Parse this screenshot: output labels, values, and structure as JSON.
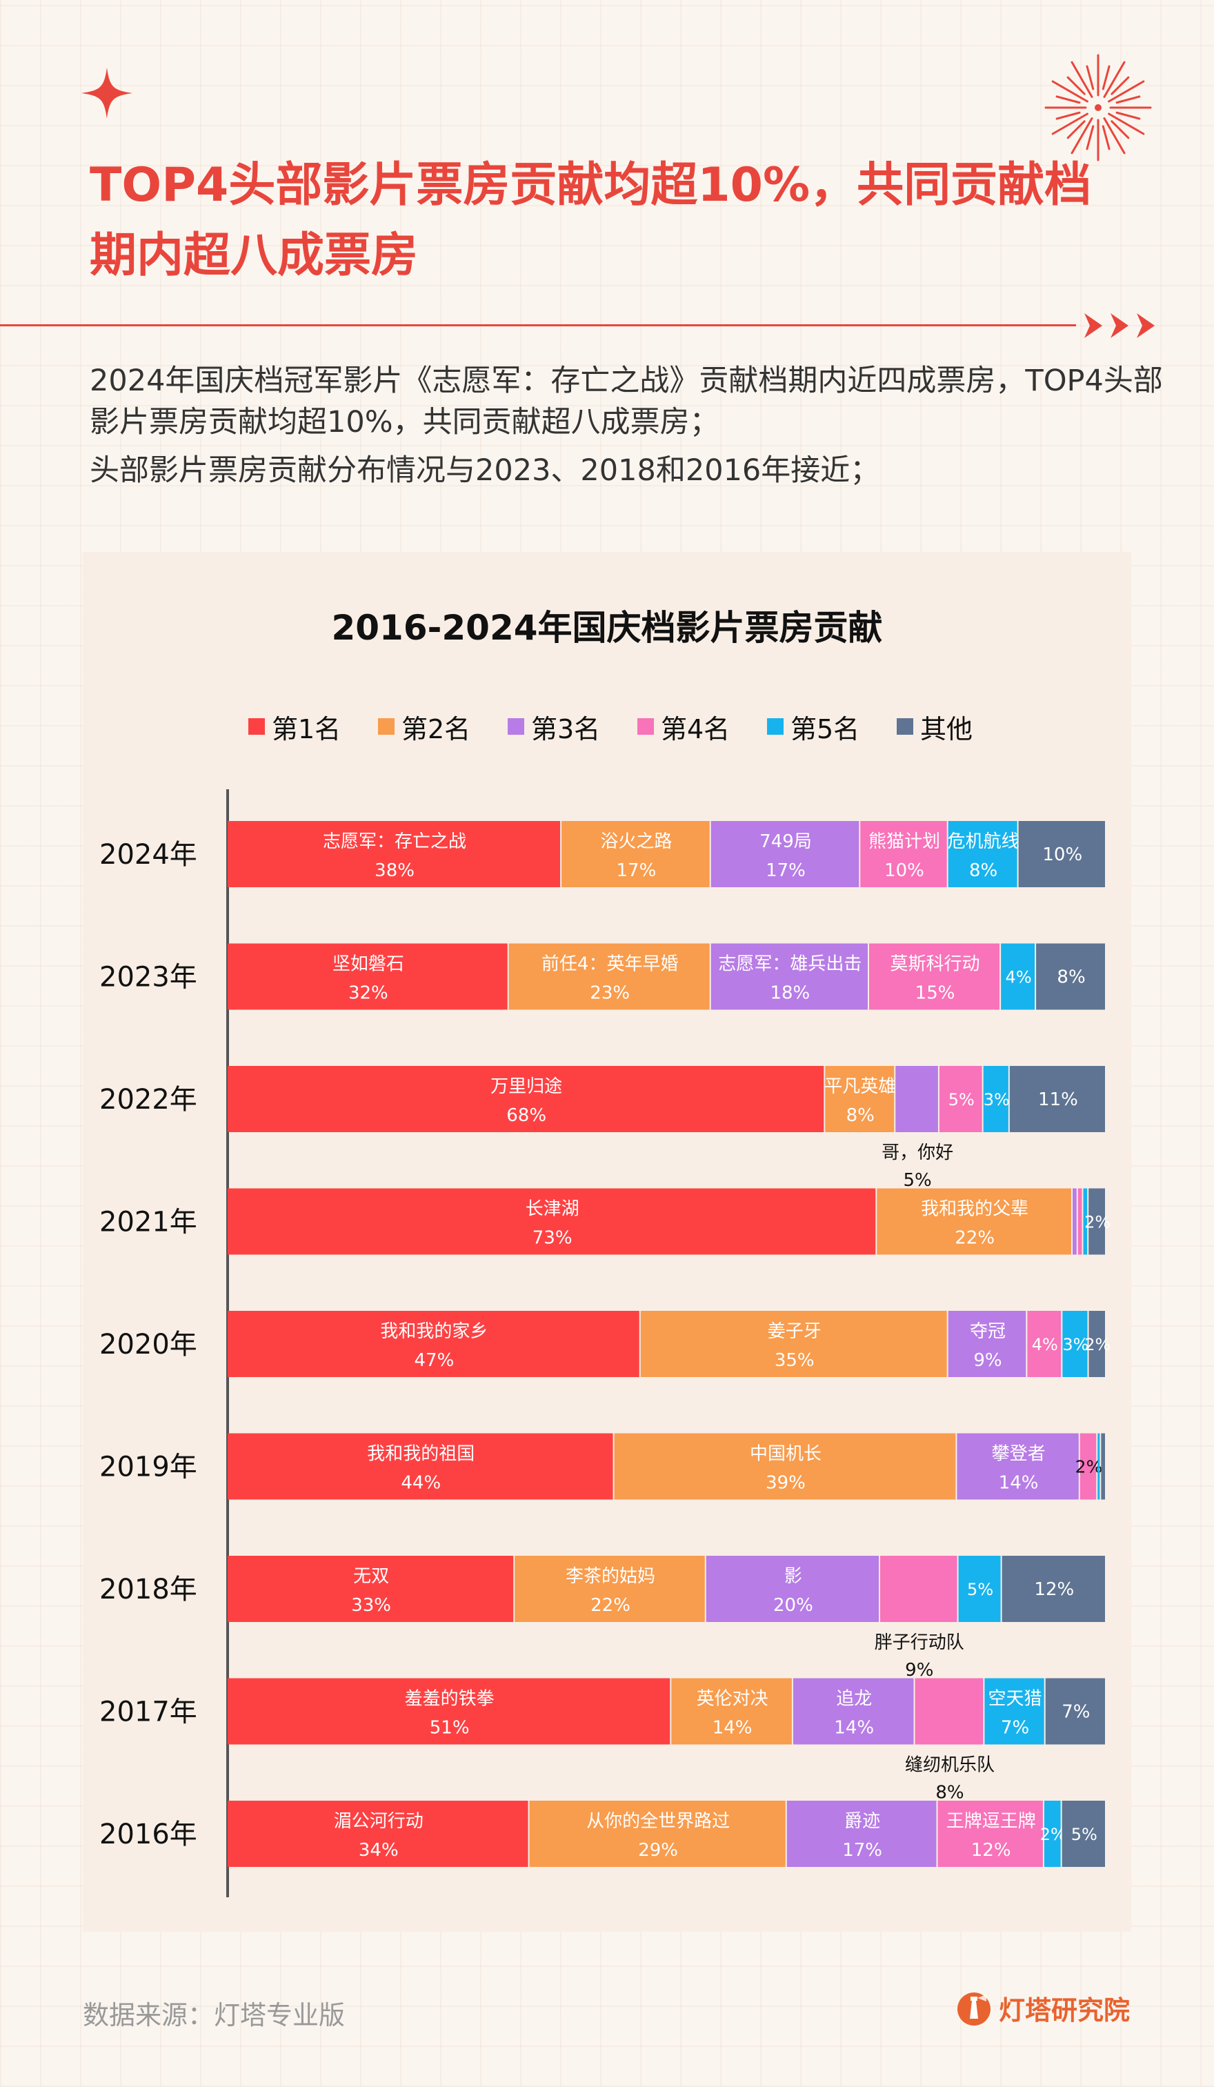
{
  "header": {
    "title": "TOP4头部影片票房贡献均超10%，共同贡献档期内超八成票房",
    "paragraphs": [
      "2024年国庆档冠军影片《志愿军：存亡之战》贡献档期内近四成票房，TOP4头部影片票房贡献均超10%，共同贡献超八成票房；",
      "头部影片票房贡献分布情况与2023、2018和2016年接近；"
    ]
  },
  "footer": {
    "source": "数据来源：灯塔专业版",
    "brand": "灯塔研究院",
    "brand_icon": "lighthouse-logo-icon"
  },
  "colors": {
    "accent": "#e8463c",
    "series": [
      "#fd4143",
      "#f89c4d",
      "#b77ce6",
      "#f873b9",
      "#17b3ee",
      "#5e7492"
    ]
  },
  "chart_data": {
    "type": "bar",
    "orientation": "horizontal",
    "stacked": true,
    "title": "2016-2024年国庆档影片票房贡献",
    "legend_position": "top",
    "xlim": [
      0,
      100
    ],
    "unit": "%",
    "legend": [
      "第1名",
      "第2名",
      "第3名",
      "第4名",
      "第5名",
      "其他"
    ],
    "categories": [
      "2024年",
      "2023年",
      "2022年",
      "2021年",
      "2020年",
      "2019年",
      "2018年",
      "2017年",
      "2016年"
    ],
    "series": [
      {
        "name": "第1名",
        "values": [
          38,
          32,
          68,
          73,
          47,
          44,
          33,
          51,
          34
        ],
        "labels": [
          "志愿军：存亡之战",
          "坚如磐石",
          "万里归途",
          "长津湖",
          "我和我的家乡",
          "我和我的祖国",
          "无双",
          "羞羞的铁拳",
          "湄公河行动"
        ]
      },
      {
        "name": "第2名",
        "values": [
          17,
          23,
          8,
          22,
          35,
          39,
          22,
          14,
          29
        ],
        "labels": [
          "浴火之路",
          "前任4：英年早婚",
          "平凡英雄",
          "我和我的父辈",
          "姜子牙",
          "中国机长",
          "李茶的姑妈",
          "英伦对决",
          "从你的全世界路过"
        ]
      },
      {
        "name": "第3名",
        "values": [
          17,
          18,
          5,
          0.6,
          9,
          14,
          20,
          14,
          17
        ],
        "labels": [
          "749局",
          "志愿军：雄兵出击",
          "哥，你好",
          "",
          "夺冠",
          "攀登者",
          "影",
          "追龙",
          "爵迹"
        ]
      },
      {
        "name": "第4名",
        "values": [
          10,
          15,
          5,
          0.6,
          4,
          2,
          9,
          8,
          12
        ],
        "labels": [
          "熊猫计划",
          "莫斯科行动",
          "",
          "",
          "",
          "",
          "胖子行动队",
          "缝纫机乐队",
          "王牌逗王牌"
        ]
      },
      {
        "name": "第5名",
        "values": [
          8,
          4,
          3,
          0.6,
          3,
          0.4,
          5,
          7,
          2
        ],
        "labels": [
          "危机航线",
          "",
          "",
          "",
          "",
          "",
          "",
          "空天猎",
          ""
        ]
      },
      {
        "name": "其他",
        "values": [
          10,
          8,
          11,
          2,
          2,
          0.6,
          12,
          7,
          5
        ],
        "labels": [
          "",
          "",
          "",
          "",
          "",
          "",
          "",
          "",
          ""
        ]
      }
    ],
    "displayed_values": [
      [
        "38%",
        "17%",
        "17%",
        "10%",
        "8%",
        "10%"
      ],
      [
        "32%",
        "23%",
        "18%",
        "15%",
        "4%",
        "8%"
      ],
      [
        "68%",
        "8%",
        "5%",
        "5%",
        "3%",
        "11%"
      ],
      [
        "73%",
        "22%",
        "",
        "",
        "",
        "2%"
      ],
      [
        "47%",
        "35%",
        "9%",
        "4%",
        "3%",
        "2%"
      ],
      [
        "44%",
        "39%",
        "14%",
        "2%",
        "",
        ""
      ],
      [
        "33%",
        "22%",
        "20%",
        "9%",
        "5%",
        "12%"
      ],
      [
        "51%",
        "14%",
        "14%",
        "8%",
        "7%",
        "7%"
      ],
      [
        "34%",
        "29%",
        "17%",
        "12%",
        "2%",
        "5%"
      ]
    ],
    "outside_labels": [
      {
        "row": 2,
        "series": 2
      },
      {
        "row": 5,
        "series": 3
      },
      {
        "row": 6,
        "series": 3
      },
      {
        "row": 7,
        "series": 3
      }
    ]
  }
}
